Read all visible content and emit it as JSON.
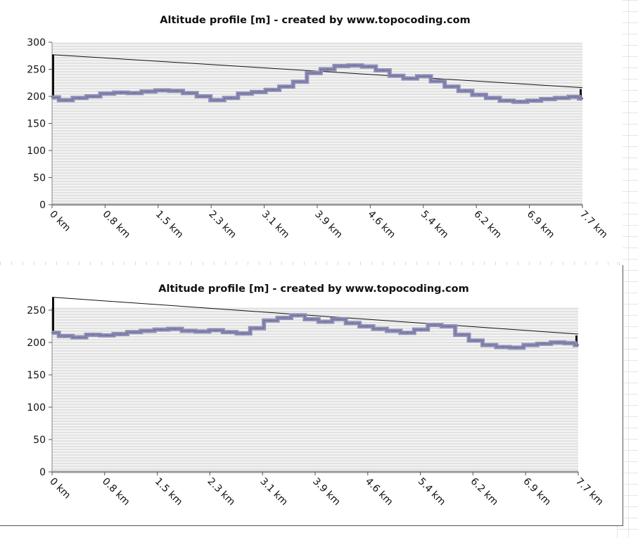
{
  "chart_data": [
    {
      "type": "area",
      "title": "Altitude profile [m] - created by www.topocoding.com",
      "xlabel": "",
      "ylabel": "",
      "ylim": [
        0,
        300
      ],
      "xlim": [
        0,
        7.7
      ],
      "y_ticks": [
        "0",
        "50",
        "100",
        "150",
        "200",
        "250",
        "300"
      ],
      "x_ticks": [
        "0 km",
        "0.8 km",
        "1.5 km",
        "2.3 km",
        "3.1 km",
        "3.9 km",
        "4.6 km",
        "5.4 km",
        "6.2 km",
        "6.9 km",
        "7.7 km"
      ],
      "grid": true,
      "line_color": "#8e8eb6",
      "x": [
        0,
        0.2,
        0.4,
        0.6,
        0.8,
        1.0,
        1.2,
        1.4,
        1.6,
        1.8,
        2.0,
        2.2,
        2.4,
        2.6,
        2.8,
        3.0,
        3.2,
        3.4,
        3.6,
        3.8,
        4.0,
        4.2,
        4.4,
        4.6,
        4.8,
        5.0,
        5.2,
        5.4,
        5.6,
        5.8,
        6.0,
        6.2,
        6.4,
        6.6,
        6.8,
        7.0,
        7.2,
        7.4,
        7.6,
        7.7
      ],
      "y": [
        198,
        193,
        197,
        200,
        205,
        207,
        206,
        209,
        211,
        210,
        206,
        200,
        193,
        197,
        205,
        208,
        212,
        218,
        227,
        243,
        250,
        256,
        257,
        255,
        248,
        238,
        233,
        237,
        228,
        218,
        210,
        203,
        197,
        192,
        190,
        192,
        195,
        197,
        199,
        196
      ],
      "reference_line": {
        "start": 277,
        "end": 216
      }
    },
    {
      "type": "area",
      "title": "Altitude profile [m] - created by www.topocoding.com",
      "xlabel": "",
      "ylabel": "",
      "ylim": [
        0,
        250
      ],
      "xlim": [
        0,
        7.7
      ],
      "y_ticks": [
        "0",
        "50",
        "100",
        "150",
        "200",
        "250"
      ],
      "x_ticks": [
        "0 km",
        "0.8 km",
        "1.5 km",
        "2.3 km",
        "3.1 km",
        "3.9 km",
        "4.6 km",
        "5.4 km",
        "6.2 km",
        "6.9 km",
        "7.7 km"
      ],
      "grid": true,
      "line_color": "#8e8eb6",
      "x": [
        0,
        0.2,
        0.4,
        0.6,
        0.8,
        1.0,
        1.2,
        1.4,
        1.6,
        1.8,
        2.0,
        2.2,
        2.4,
        2.6,
        2.8,
        3.0,
        3.2,
        3.4,
        3.6,
        3.8,
        4.0,
        4.2,
        4.4,
        4.6,
        4.8,
        5.0,
        5.2,
        5.4,
        5.6,
        5.8,
        6.0,
        6.2,
        6.4,
        6.6,
        6.8,
        7.0,
        7.2,
        7.4,
        7.6,
        7.7
      ],
      "y": [
        215,
        210,
        208,
        212,
        211,
        213,
        216,
        218,
        220,
        221,
        218,
        217,
        219,
        216,
        214,
        222,
        234,
        238,
        242,
        236,
        232,
        236,
        230,
        225,
        221,
        218,
        215,
        220,
        227,
        225,
        212,
        203,
        196,
        193,
        192,
        196,
        198,
        200,
        199,
        196
      ],
      "reference_line": {
        "start": 270,
        "end": 213
      }
    }
  ]
}
